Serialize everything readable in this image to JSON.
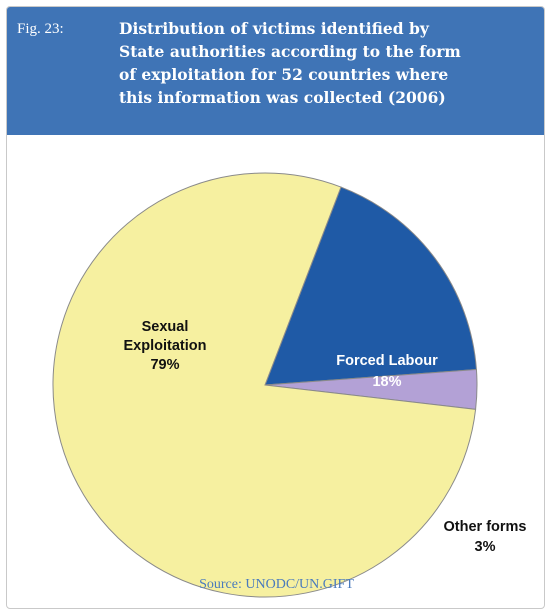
{
  "figure": {
    "label": "Fig. 23:",
    "title_lines": [
      "Distribution of victims identified by",
      "State authorities according to the form",
      "of exploitation for 52 countries where",
      "this information was collected (2006)"
    ],
    "source": "Source: UNODC/UN.GIFT"
  },
  "colors": {
    "header_bg": "#3f74b6",
    "sexual": "#f6f0a0",
    "forced": "#1f5aa6",
    "other": "#b3a1d6"
  },
  "chart_data": {
    "type": "pie",
    "title": "Distribution of victims identified by State authorities according to the form of exploitation for 52 countries where this information was collected (2006)",
    "slices": [
      {
        "name": "Sexual Exploitation",
        "label_lines": [
          "Sexual",
          "Exploitation",
          "79%"
        ],
        "value": 79,
        "color": "#f6f0a0"
      },
      {
        "name": "Forced Labour",
        "label_lines": [
          "Forced Labour",
          "18%"
        ],
        "value": 18,
        "color": "#1f5aa6"
      },
      {
        "name": "Other forms",
        "label_lines": [
          "Other forms",
          "3%"
        ],
        "value": 3,
        "color": "#b3a1d6"
      }
    ]
  }
}
